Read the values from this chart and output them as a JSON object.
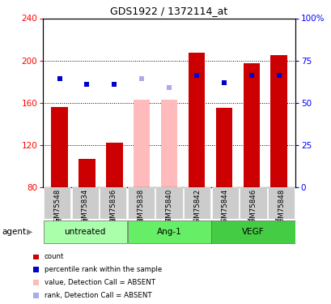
{
  "title": "GDS1922 / 1372114_at",
  "samples": [
    "GSM75548",
    "GSM75834",
    "GSM75836",
    "GSM75838",
    "GSM75840",
    "GSM75842",
    "GSM75844",
    "GSM75846",
    "GSM75848"
  ],
  "groups": [
    {
      "label": "untreated",
      "indices": [
        0,
        1,
        2
      ]
    },
    {
      "label": "Ang-1",
      "indices": [
        3,
        4,
        5
      ]
    },
    {
      "label": "VEGF",
      "indices": [
        6,
        7,
        8
      ]
    }
  ],
  "bar_values": [
    156,
    107,
    122,
    163,
    163,
    207,
    155,
    197,
    205
  ],
  "bar_absent": [
    false,
    false,
    false,
    true,
    true,
    false,
    false,
    false,
    false
  ],
  "percentile": [
    64,
    61,
    61,
    64,
    59,
    66,
    62,
    66,
    66
  ],
  "pct_absent": [
    false,
    false,
    false,
    true,
    true,
    false,
    false,
    false,
    false
  ],
  "ymin": 80,
  "ymax": 240,
  "y_ticks": [
    80,
    120,
    160,
    200,
    240
  ],
  "y2_ticks": [
    0,
    25,
    50,
    75,
    100
  ],
  "y2_labels": [
    "0",
    "25",
    "50",
    "75",
    "100%"
  ],
  "bar_color_normal": "#cc0000",
  "bar_color_absent": "#ffbbbb",
  "percentile_color": "#0000cc",
  "percentile_absent_color": "#aaaaee",
  "grid_color": "#000000",
  "bg_plot": "#ffffff",
  "bg_sample_label": "#cccccc",
  "bg_group_color": "#88ee88",
  "agent_label": "agent",
  "legend_items": [
    {
      "color": "#cc0000",
      "label": "count"
    },
    {
      "color": "#0000cc",
      "label": "percentile rank within the sample"
    },
    {
      "color": "#ffbbbb",
      "label": "value, Detection Call = ABSENT"
    },
    {
      "color": "#aaaaee",
      "label": "rank, Detection Call = ABSENT"
    }
  ]
}
